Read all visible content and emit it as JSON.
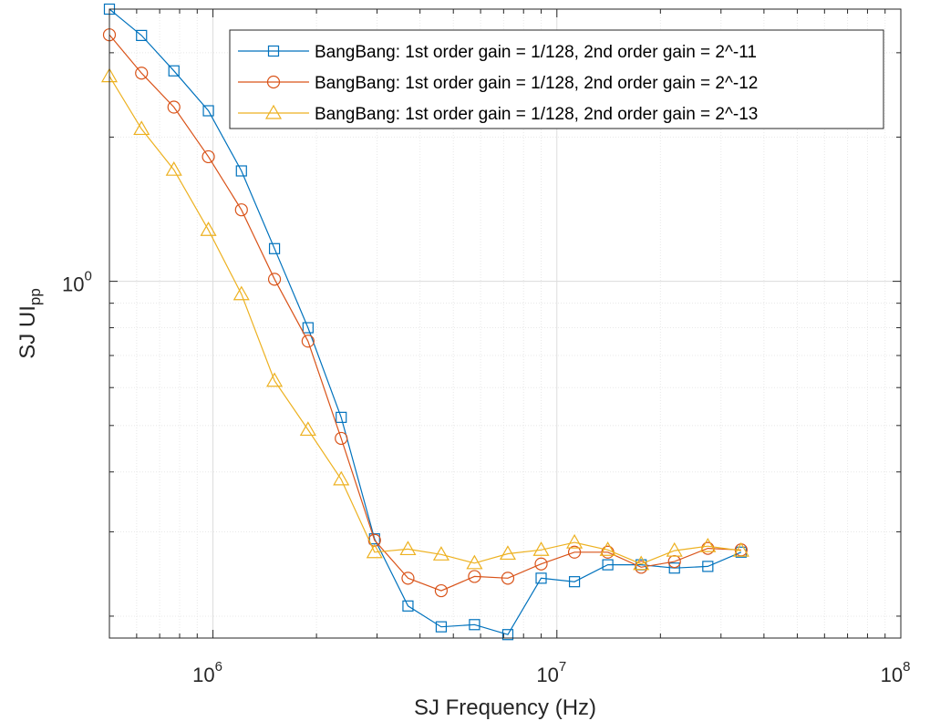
{
  "chart_data": {
    "type": "line",
    "xscale": "log",
    "yscale": "log",
    "xlim": [
      500000,
      100000000
    ],
    "ylim": [
      0.18,
      3.7
    ],
    "xlabel": "SJ Frequency (Hz)",
    "ylabel_main": "SJ UI",
    "ylabel_sub": "pp",
    "x_ticks": [
      {
        "value": 1000000,
        "base": "10",
        "exp": "6"
      },
      {
        "value": 10000000,
        "base": "10",
        "exp": "7"
      },
      {
        "value": 100000000,
        "base": "10",
        "exp": "8"
      }
    ],
    "y_ticks": [
      {
        "value": 1,
        "label": "10",
        "exp": "0"
      }
    ],
    "grid": true,
    "legend_position": "top-right",
    "x": [
      500000,
      620000,
      770000,
      970000,
      1210000,
      1510000,
      1890000,
      2360000,
      2950000,
      3690000,
      4610000,
      5760000,
      7200000,
      9000000,
      11250000,
      14060000,
      17580000,
      21970000,
      27470000,
      34330000
    ],
    "series": [
      {
        "name": "BangBang: 1st order gain = 1/128, 2nd order gain = 2^-11",
        "color": "#0072BD",
        "marker": "square",
        "values": [
          3.7,
          3.26,
          2.75,
          2.27,
          1.7,
          1.17,
          0.8,
          0.52,
          0.29,
          0.21,
          0.19,
          0.192,
          0.183,
          0.24,
          0.236,
          0.256,
          0.256,
          0.252,
          0.254,
          0.272
        ]
      },
      {
        "name": "BangBang: 1st order gain = 1/128, 2nd order gain = 2^-12",
        "color": "#D95319",
        "marker": "circle",
        "values": [
          3.27,
          2.72,
          2.31,
          1.82,
          1.41,
          1.01,
          0.75,
          0.47,
          0.288,
          0.24,
          0.226,
          0.242,
          0.24,
          0.257,
          0.272,
          0.272,
          0.253,
          0.26,
          0.277,
          0.275
        ]
      },
      {
        "name": "BangBang: 1st order gain = 1/128, 2nd order gain = 2^-13",
        "color": "#EDB120",
        "marker": "triangle",
        "values": [
          2.68,
          2.08,
          1.71,
          1.28,
          0.94,
          0.62,
          0.49,
          0.386,
          0.272,
          0.276,
          0.269,
          0.258,
          0.27,
          0.275,
          0.285,
          0.275,
          0.257,
          0.274,
          0.28,
          0.274
        ]
      }
    ]
  }
}
